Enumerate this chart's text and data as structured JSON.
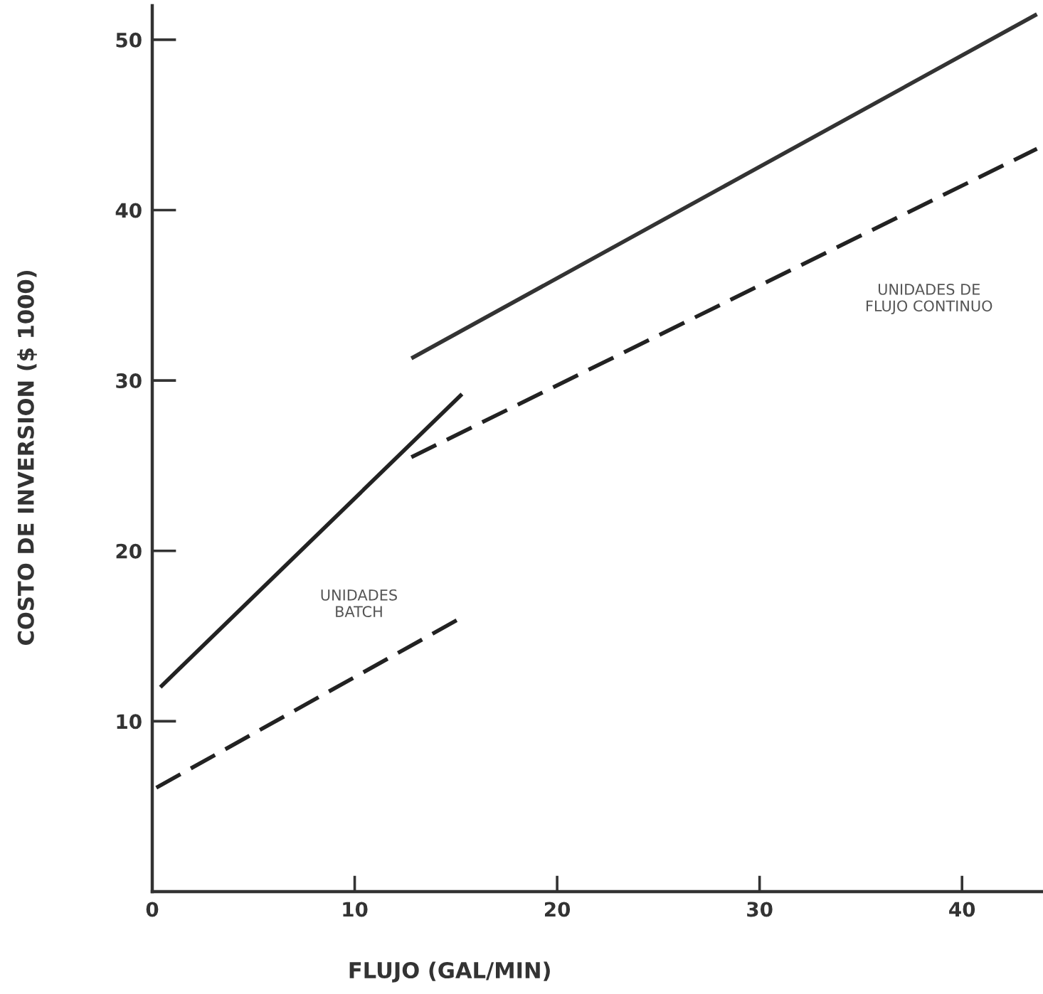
{
  "chart_data": {
    "type": "line",
    "xlabel": "FLUJO (GAL/MIN)",
    "ylabel": "COSTO DE INVERSION ($ 1000)",
    "xlim": [
      0,
      44
    ],
    "ylim": [
      0,
      52
    ],
    "xticks": [
      0,
      10,
      20,
      30,
      40
    ],
    "yticks": [
      10,
      20,
      30,
      40,
      50
    ],
    "series": [
      {
        "x": [
          0.4,
          15.3
        ],
        "values": [
          12,
          29.2
        ],
        "color": "#222222",
        "line_style": "solid"
      },
      {
        "x": [
          0.2,
          15.3
        ],
        "values": [
          6.1,
          16.1
        ],
        "color": "#222222",
        "line_style": "dashed"
      },
      {
        "x": [
          12.8,
          43.7
        ],
        "values": [
          31.3,
          51.5
        ],
        "color": "#333333",
        "line_style": "solid"
      },
      {
        "x": [
          12.8,
          43.7
        ],
        "values": [
          25.5,
          43.6
        ],
        "color": "#222222",
        "line_style": "dashed"
      }
    ],
    "annotations": [
      "UNIDADES\nBATCH",
      "UNIDADES DE\nFLUJO CONTINUO"
    ]
  }
}
